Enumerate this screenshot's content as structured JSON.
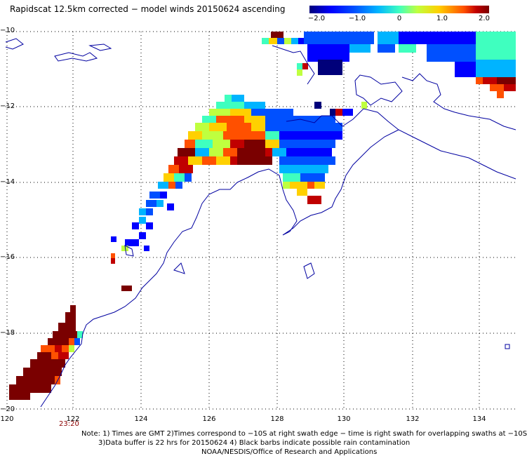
{
  "title": "Rapidscat 12.5km corrected − model winds 20150624 ascending",
  "colorbar": {
    "labels": [
      "−2.0",
      "−1.0",
      "0",
      "1.0",
      "2.0"
    ]
  },
  "lat_labels": [
    "−10",
    "−12",
    "−14",
    "−16",
    "−18",
    "−20"
  ],
  "lon_labels": [
    "120",
    "122",
    "124",
    "126",
    "128",
    "130",
    "132",
    "134"
  ],
  "pass_time": "23:20",
  "footer": {
    "line1": "Note: 1) Times are GMT 2)Times correspond to −10S at right swath edge − time is right swath for overlapping swaths at −10S",
    "line2": "3)Data buffer is 22 hrs for 20150624 4) Black barbs indicate possible rain contamination",
    "line3": "NOAA/NESDIS/Office of Research and Applications"
  },
  "colors": {
    "coast": "#0000a0",
    "grid": "#000000",
    "pass_time": "#8b0000"
  }
}
